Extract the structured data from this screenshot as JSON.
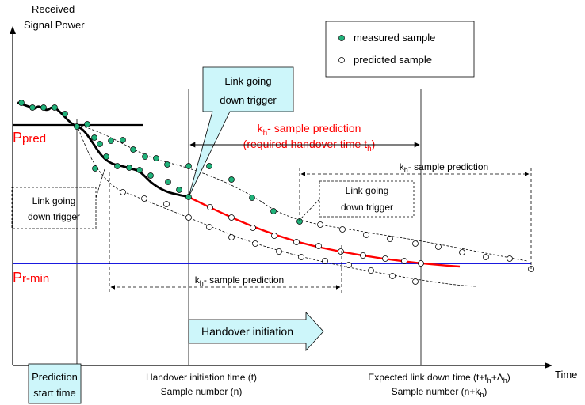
{
  "axis": {
    "y_label_line1": "Received",
    "y_label_line2": "Signal Power",
    "x_label": "Time"
  },
  "legend": {
    "measured": "measured sample",
    "predicted": "predicted sample"
  },
  "levels": {
    "p_pred_main": "P",
    "p_pred_sub": "pred",
    "p_rmin_main": "P",
    "p_rmin_sub": "r-min"
  },
  "callouts": {
    "link_down_trigger_line1": "Link going",
    "link_down_trigger_line2": "down trigger",
    "prediction_start_line1": "Prediction",
    "prediction_start_line2": "start time",
    "handover_initiation": "Handover initiation"
  },
  "annotations": {
    "kh_prediction_red_line1_a": "k",
    "kh_prediction_red_line1_sub": "h",
    "kh_prediction_red_line1_b": "- sample prediction",
    "kh_prediction_red_line2_a": "(required handover time t",
    "kh_prediction_red_line2_sub": "h",
    "kh_prediction_red_line2_b": ")",
    "kh_sample_prediction_a": "k",
    "kh_sample_prediction_sub": "h",
    "kh_sample_prediction_b": "- sample prediction",
    "dashed_trigger_left_line1": "Link going",
    "dashed_trigger_left_line2": "down trigger",
    "dashed_trigger_right_line1": "Link going",
    "dashed_trigger_right_line2": "down trigger"
  },
  "x_markers": {
    "handover_time_line1": "Handover initiation time (t)",
    "handover_time_line2": "Sample number (n)",
    "link_down_line1_a": "Expected link down time (t+t",
    "link_down_line1_sub1": "h",
    "link_down_line1_b": "+Δ",
    "link_down_line1_sub2": "h",
    "link_down_line1_c": ")",
    "link_down_line2_a": "Sample number (n+k",
    "link_down_line2_sub": "h",
    "link_down_line2_c": ")"
  },
  "colors": {
    "measured_fill": "#20b27a",
    "callout_fill": "#cdf6fa",
    "prediction_curve": "#ff0000",
    "pr_min_line": "#1a1adf",
    "pred_label": "#ff0000"
  }
}
